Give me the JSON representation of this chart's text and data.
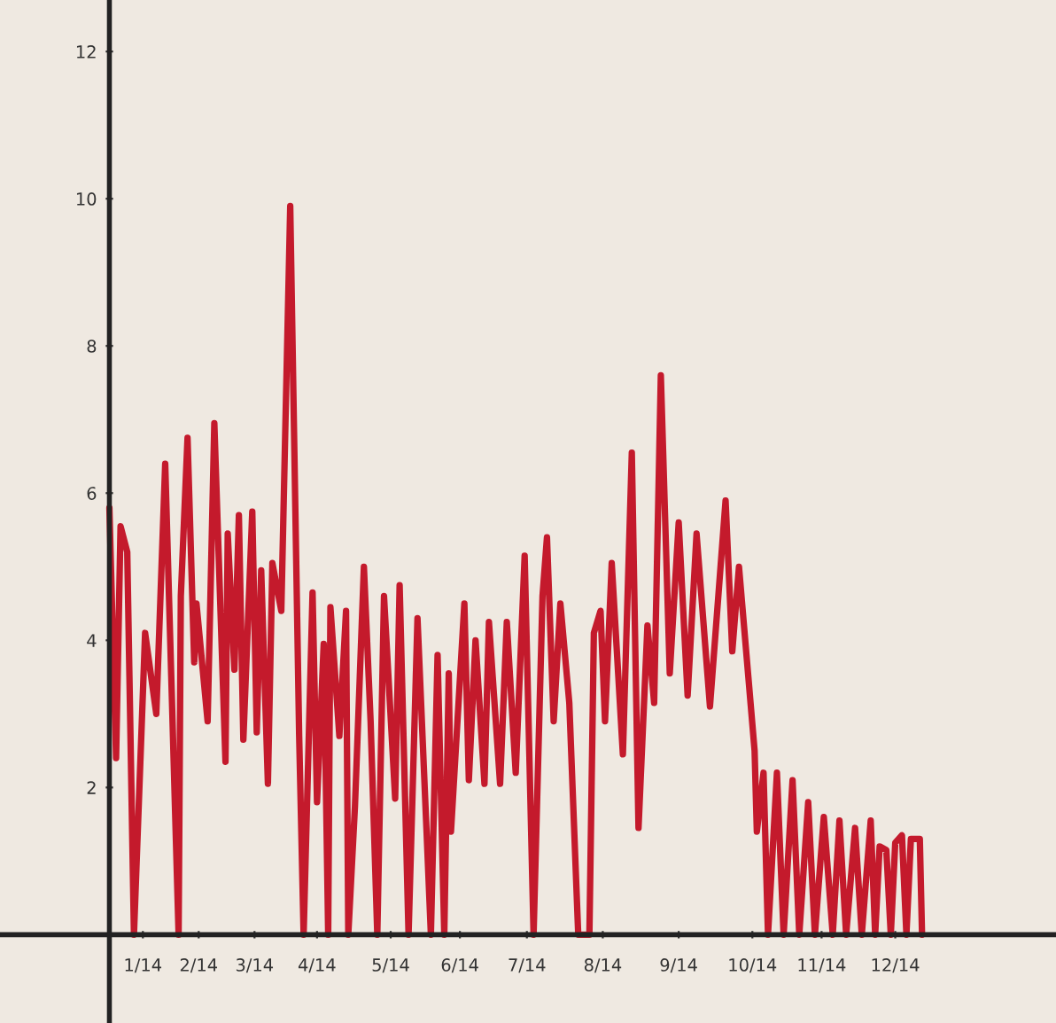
{
  "chart_data": {
    "type": "line",
    "color": "#c41a2c",
    "x": [
      "2014-01-01",
      "2014-01-04",
      "2014-01-06",
      "2014-01-09",
      "2014-01-12",
      "2014-01-17",
      "2014-01-22",
      "2014-01-26",
      "2014-02-01",
      "2014-02-02",
      "2014-02-05",
      "2014-02-08",
      "2014-02-09",
      "2014-02-14",
      "2014-02-17",
      "2014-02-22",
      "2014-02-23",
      "2014-02-26",
      "2014-02-28",
      "2014-03-02",
      "2014-03-06",
      "2014-03-08",
      "2014-03-10",
      "2014-03-13",
      "2014-03-15",
      "2014-03-19",
      "2014-03-23",
      "2014-03-27",
      "2014-03-29",
      "2014-04-02",
      "2014-04-04",
      "2014-04-07",
      "2014-04-09",
      "2014-04-10",
      "2014-04-14",
      "2014-04-17",
      "2014-04-18",
      "2014-04-21",
      "2014-04-25",
      "2014-04-28",
      "2014-05-01",
      "2014-05-04",
      "2014-05-09",
      "2014-05-11",
      "2014-05-15",
      "2014-05-19",
      "2014-05-23",
      "2014-05-25",
      "2014-05-28",
      "2014-05-31",
      "2014-06-02",
      "2014-06-03",
      "2014-06-09",
      "2014-06-11",
      "2014-06-14",
      "2014-06-18",
      "2014-06-20",
      "2014-06-25",
      "2014-06-28",
      "2014-07-02",
      "2014-07-06",
      "2014-07-10",
      "2014-07-14",
      "2014-07-16",
      "2014-07-19",
      "2014-07-22",
      "2014-07-26",
      "2014-07-30",
      "2014-08-04",
      "2014-08-06",
      "2014-08-09",
      "2014-08-11",
      "2014-08-14",
      "2014-08-19",
      "2014-08-23",
      "2014-08-26",
      "2014-08-30",
      "2014-09-02",
      "2014-09-05",
      "2014-09-09",
      "2014-09-13",
      "2014-09-17",
      "2014-09-21",
      "2014-09-27",
      "2014-10-04",
      "2014-10-07",
      "2014-10-10",
      "2014-10-17",
      "2014-10-18",
      "2014-10-21",
      "2014-10-23",
      "2014-10-27",
      "2014-10-30",
      "2014-11-03",
      "2014-11-06",
      "2014-11-10",
      "2014-11-13",
      "2014-11-17",
      "2014-11-21",
      "2014-11-24",
      "2014-11-27",
      "2014-12-01",
      "2014-12-04",
      "2014-12-08",
      "2014-12-10",
      "2014-12-12",
      "2014-12-15",
      "2014-12-17",
      "2014-12-19",
      "2014-12-22",
      "2014-12-24",
      "2014-12-26",
      "2014-12-30",
      "2014-12-31"
    ],
    "values": [
      5.8,
      2.4,
      5.55,
      5.2,
      0,
      4.1,
      3.0,
      6.4,
      0,
      4.6,
      6.75,
      3.7,
      4.5,
      2.9,
      6.95,
      2.35,
      5.45,
      3.6,
      5.7,
      2.65,
      5.75,
      2.75,
      4.95,
      2.05,
      5.05,
      4.4,
      9.9,
      2.7,
      0,
      4.65,
      1.8,
      3.95,
      0,
      4.45,
      2.7,
      4.4,
      0,
      1.75,
      5.0,
      2.9,
      0,
      4.6,
      1.85,
      4.75,
      0,
      4.3,
      1.45,
      0,
      3.8,
      0,
      3.55,
      1.4,
      4.5,
      2.1,
      4.0,
      2.05,
      4.25,
      2.05,
      4.25,
      2.2,
      5.15,
      0,
      4.6,
      5.4,
      2.9,
      4.5,
      3.15,
      0,
      0,
      4.1,
      4.4,
      2.9,
      5.05,
      2.45,
      6.55,
      1.45,
      4.2,
      3.15,
      7.6,
      3.55,
      5.6,
      3.25,
      5.45,
      3.1,
      5.9,
      3.85,
      5.0,
      2.5,
      1.4,
      2.2,
      0,
      2.2,
      0,
      2.1,
      0,
      1.8,
      0,
      1.6,
      0,
      1.55,
      0,
      1.45,
      0,
      1.55,
      0,
      1.2,
      1.15,
      0,
      1.25,
      1.35,
      0,
      1.3,
      1.3,
      0
    ],
    "xlim": [
      "2013-11-13",
      "2015-03-01"
    ],
    "ylim": [
      -1.2,
      12.7
    ],
    "xticks": [
      {
        "value": "2014-01-16",
        "label": "1/14"
      },
      {
        "value": "2014-02-10",
        "label": "2/14"
      },
      {
        "value": "2014-03-07",
        "label": "3/14"
      },
      {
        "value": "2014-04-04",
        "label": "4/14"
      },
      {
        "value": "2014-05-07",
        "label": "5/14"
      },
      {
        "value": "2014-06-07",
        "label": "6/14"
      },
      {
        "value": "2014-07-07",
        "label": "7/14"
      },
      {
        "value": "2014-08-10",
        "label": "8/14"
      },
      {
        "value": "2014-09-13",
        "label": "9/14"
      },
      {
        "value": "2014-10-16",
        "label": "10/14"
      },
      {
        "value": "2014-11-16",
        "label": "11/14"
      },
      {
        "value": "2014-12-19",
        "label": "12/14"
      }
    ],
    "yticks": [
      2,
      4,
      6,
      8,
      10,
      12
    ]
  }
}
